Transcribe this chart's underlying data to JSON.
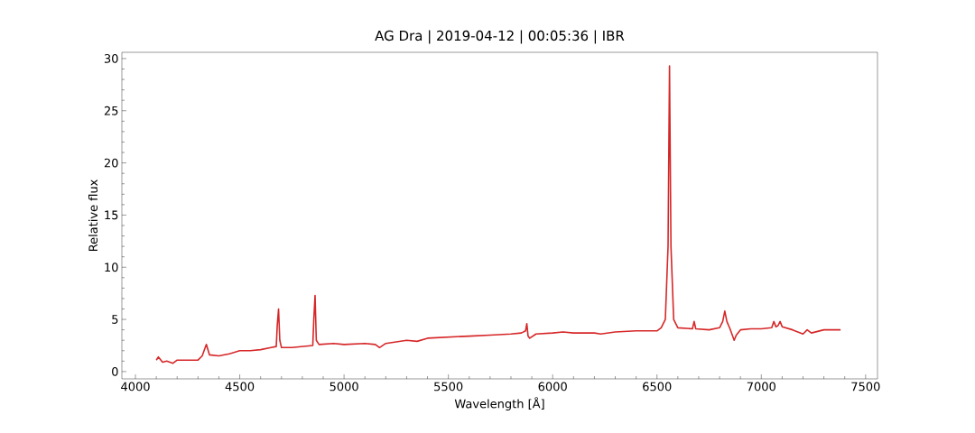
{
  "chart_data": {
    "type": "line",
    "title": "AG Dra | 2019-04-12 | 00:05:36 | IBR",
    "xlabel": "Wavelength [Å]",
    "ylabel": "Relative flux",
    "xlim": [
      3935,
      7557
    ],
    "ylim": [
      -0.7,
      30.6
    ],
    "xticks": [
      4000,
      4500,
      5000,
      5500,
      6000,
      6500,
      7000,
      7500
    ],
    "yticks": [
      0,
      5,
      10,
      15,
      20,
      25,
      30
    ],
    "marker": "none",
    "line_style": "solid",
    "series": [
      {
        "color": "#d62728",
        "x": [
          4100,
          4110,
          4130,
          4150,
          4180,
          4200,
          4250,
          4300,
          4320,
          4340,
          4355,
          4400,
          4450,
          4500,
          4550,
          4600,
          4650,
          4675,
          4680,
          4686,
          4692,
          4700,
          4750,
          4800,
          4850,
          4855,
          4861,
          4867,
          4880,
          4950,
          5000,
          5100,
          5150,
          5170,
          5200,
          5300,
          5350,
          5400,
          5500,
          5600,
          5700,
          5800,
          5850,
          5870,
          5876,
          5882,
          5890,
          5920,
          6000,
          6050,
          6100,
          6200,
          6230,
          6300,
          6400,
          6500,
          6520,
          6540,
          6553,
          6560,
          6567,
          6580,
          6600,
          6670,
          6678,
          6686,
          6750,
          6800,
          6815,
          6825,
          6835,
          6850,
          6870,
          6880,
          6900,
          6950,
          7000,
          7050,
          7060,
          7070,
          7080,
          7090,
          7100,
          7150,
          7200,
          7220,
          7240,
          7300,
          7380
        ],
        "values": [
          1.1,
          1.4,
          0.9,
          1.0,
          0.8,
          1.1,
          1.1,
          1.1,
          1.5,
          2.6,
          1.6,
          1.5,
          1.7,
          2.0,
          2.0,
          2.1,
          2.3,
          2.4,
          4.5,
          6.0,
          3.0,
          2.3,
          2.3,
          2.4,
          2.5,
          5.0,
          7.3,
          3.0,
          2.6,
          2.7,
          2.6,
          2.7,
          2.6,
          2.3,
          2.7,
          3.0,
          2.9,
          3.2,
          3.3,
          3.4,
          3.5,
          3.6,
          3.7,
          3.9,
          4.6,
          3.4,
          3.2,
          3.6,
          3.7,
          3.8,
          3.7,
          3.7,
          3.6,
          3.8,
          3.9,
          3.9,
          4.2,
          5.0,
          12.0,
          29.3,
          12.0,
          5.0,
          4.2,
          4.1,
          4.8,
          4.1,
          4.0,
          4.2,
          4.8,
          5.8,
          4.8,
          4.1,
          3.0,
          3.5,
          4.0,
          4.1,
          4.1,
          4.2,
          4.8,
          4.3,
          4.4,
          4.8,
          4.3,
          4.0,
          3.6,
          4.0,
          3.7,
          4.0,
          4.0
        ]
      }
    ]
  }
}
